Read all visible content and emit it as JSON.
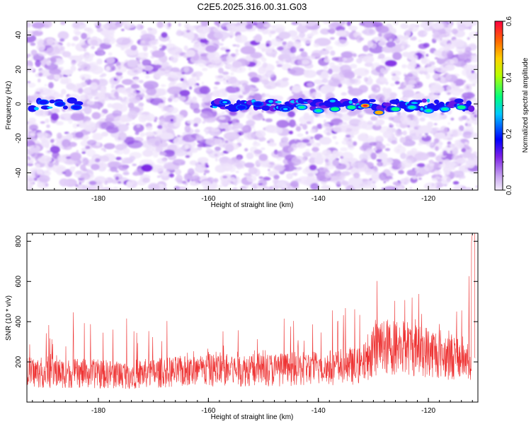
{
  "title": "C2E5.2025.316.00.31.G03",
  "chart_data": [
    {
      "type": "heatmap",
      "xlabel": "Height of straight line (km)",
      "ylabel": "Frequency (Hz)",
      "xlim": [
        -193,
        -111
      ],
      "ylim": [
        -50,
        48
      ],
      "xticks": [
        -180,
        -160,
        -140,
        -120
      ],
      "yticks": [
        -40,
        -20,
        0,
        20,
        40
      ],
      "colorbar": {
        "label": "Normalized spectral amplitude",
        "range": [
          0.0,
          0.6
        ],
        "ticks": [
          "0.0",
          "0.2",
          "0.4",
          "0.6"
        ],
        "colors": [
          "#f0e6fa",
          "#8a2be2",
          "#0000ff",
          "#00d0ff",
          "#00ff66",
          "#c8ff00",
          "#ffcc00",
          "#ff6600",
          "#ff0033"
        ]
      },
      "signal": {
        "frequency_hz": 0,
        "x_start_km": -193,
        "x_end_km": -112,
        "segments": [
          {
            "x": -190,
            "f": 1,
            "amp": 0.15
          },
          {
            "x": -187,
            "f": 0,
            "amp": 0.15
          },
          {
            "x": -184,
            "f": -2,
            "amp": 0.18
          },
          {
            "x": -157,
            "f": 1,
            "amp": 0.25
          },
          {
            "x": -154,
            "f": -2,
            "amp": 0.2
          },
          {
            "x": -151,
            "f": 0,
            "amp": 0.2
          },
          {
            "x": -146,
            "f": -3,
            "amp": 0.25
          },
          {
            "x": -143,
            "f": -2,
            "amp": 0.3
          },
          {
            "x": -140,
            "f": -4,
            "amp": 0.32
          },
          {
            "x": -137,
            "f": -3,
            "amp": 0.35
          },
          {
            "x": -134,
            "f": -2,
            "amp": 0.33
          },
          {
            "x": -131.5,
            "f": -1,
            "amp": 0.6
          },
          {
            "x": -129,
            "f": -5,
            "amp": 0.55
          },
          {
            "x": -126,
            "f": -3,
            "amp": 0.35
          },
          {
            "x": -123,
            "f": -2,
            "amp": 0.3
          },
          {
            "x": -120,
            "f": -4,
            "amp": 0.3
          },
          {
            "x": -117,
            "f": -3,
            "amp": 0.32
          },
          {
            "x": -114,
            "f": -2,
            "amp": 0.35
          }
        ]
      }
    },
    {
      "type": "line",
      "xlabel": "Height of straight line (km)",
      "ylabel": "SNR (10 * v/v)",
      "xlim": [
        -193,
        -111
      ],
      "ylim": [
        0,
        840
      ],
      "xticks": [
        -180,
        -160,
        -140,
        -120
      ],
      "yticks": [
        200,
        400,
        600,
        800
      ],
      "color": "#ee3333",
      "series": [
        {
          "name": "SNR",
          "x_start": -193,
          "x_end": -111.5,
          "profile": [
            {
              "x": -193,
              "base": 140,
              "peak": 420
            },
            {
              "x": -175,
              "base": 130,
              "peak": 480
            },
            {
              "x": -160,
              "base": 150,
              "peak": 380
            },
            {
              "x": -145,
              "base": 155,
              "peak": 440
            },
            {
              "x": -132,
              "base": 170,
              "peak": 480
            },
            {
              "x": -130,
              "base": 260,
              "peak": 700
            },
            {
              "x": -125,
              "base": 260,
              "peak": 600
            },
            {
              "x": -118,
              "base": 230,
              "peak": 560
            },
            {
              "x": -113,
              "base": 200,
              "peak": 560
            },
            {
              "x": -112,
              "base": 220,
              "peak": 840
            }
          ]
        }
      ]
    }
  ]
}
